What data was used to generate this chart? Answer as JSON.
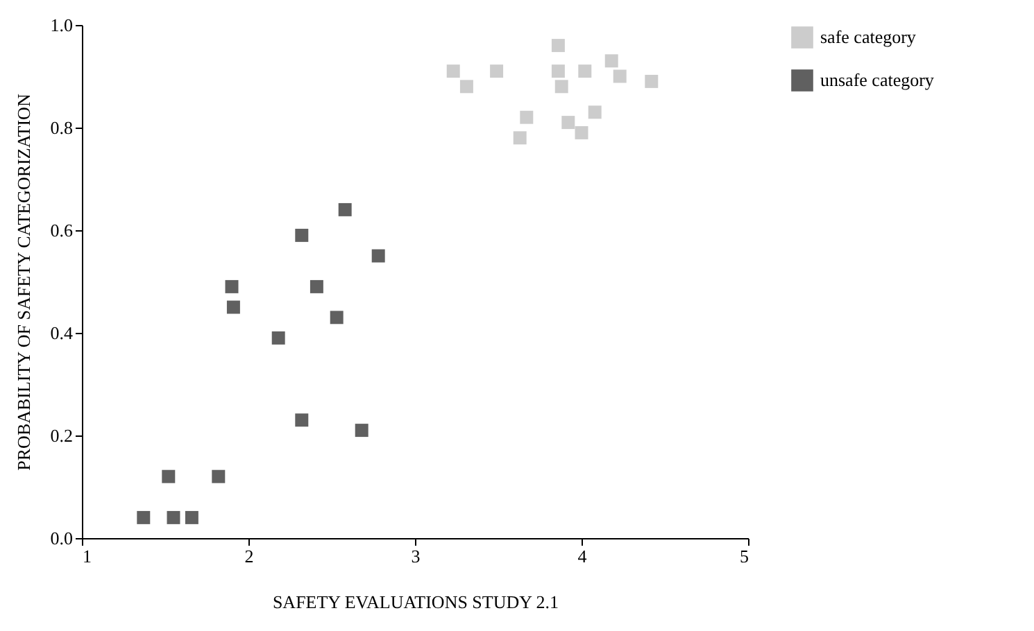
{
  "chart_data": {
    "type": "scatter",
    "xlabel": "SAFETY EVALUATIONS STUDY 2.1",
    "ylabel": "PROBABILITY OF SAFETY CATEGORIZATION",
    "xlim": [
      1,
      5
    ],
    "xticks": [
      1,
      2,
      3,
      4,
      5
    ],
    "ylim": [
      0,
      1
    ],
    "yticks": [
      {
        "value": 0,
        "label": "0.0"
      },
      {
        "value": 0.2,
        "label": "0.2"
      },
      {
        "value": 0.4,
        "label": "0.4"
      },
      {
        "value": 0.6,
        "label": "0.6"
      },
      {
        "value": 0.8,
        "label": "0.8"
      },
      {
        "value": 1,
        "label": "1.0"
      }
    ],
    "grid": false,
    "legend": "top right",
    "marker": "square",
    "series": [
      {
        "name": "safe category",
        "color": "#cccccc",
        "x": [
          3.23,
          3.31,
          3.49,
          3.86,
          3.86,
          4.02,
          4.18,
          3.88,
          4.23,
          4.42,
          3.67,
          3.63,
          3.92,
          4.0,
          4.08
        ],
        "values": [
          0.91,
          0.88,
          0.91,
          0.96,
          0.91,
          0.91,
          0.93,
          0.88,
          0.9,
          0.89,
          0.82,
          0.78,
          0.81,
          0.79,
          0.83
        ]
      },
      {
        "name": "unsafe category",
        "color": "#606060",
        "x": [
          1.37,
          1.55,
          1.66,
          1.52,
          1.82,
          2.58,
          2.32,
          2.78,
          1.9,
          2.41,
          1.91,
          2.53,
          2.18,
          2.32,
          2.68
        ],
        "values": [
          0.04,
          0.04,
          0.04,
          0.12,
          0.12,
          0.64,
          0.59,
          0.55,
          0.49,
          0.49,
          0.45,
          0.43,
          0.39,
          0.23,
          0.21
        ]
      }
    ]
  }
}
